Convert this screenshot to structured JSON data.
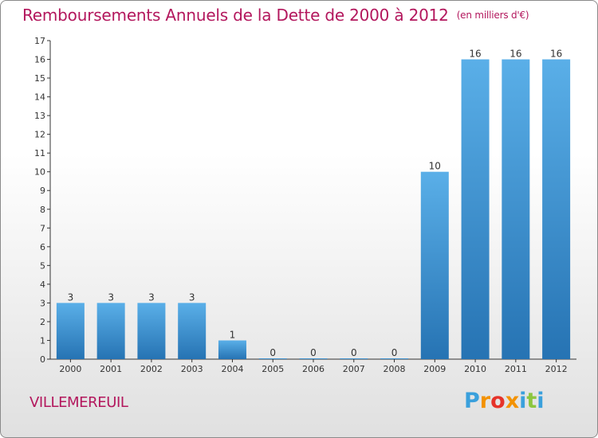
{
  "title": "Remboursements Annuels de la Dette de 2000 à 2012",
  "unit": "(en milliers d'€)",
  "commune": "VILLEMEREUIL",
  "logo": {
    "text": "Proxiti",
    "letter_colors": [
      "#3aa0dc",
      "#f39200",
      "#e6332a",
      "#f39200",
      "#3aa0dc",
      "#8cc63f",
      "#3aa0dc"
    ]
  },
  "chart_data": {
    "type": "bar",
    "categories": [
      "2000",
      "2001",
      "2002",
      "2003",
      "2004",
      "2005",
      "2006",
      "2007",
      "2008",
      "2009",
      "2010",
      "2011",
      "2012"
    ],
    "values": [
      3,
      3,
      3,
      3,
      1,
      0,
      0,
      0,
      0,
      10,
      16,
      16,
      16
    ],
    "data_labels": [
      "3",
      "3",
      "3",
      "3",
      "1",
      "0",
      "0",
      "0",
      "0",
      "10",
      "16",
      "16",
      "16"
    ],
    "ylim": [
      0,
      17
    ],
    "y_ticks": [
      "0",
      "1",
      "2",
      "3",
      "4",
      "5",
      "6",
      "7",
      "8",
      "9",
      "10",
      "11",
      "12",
      "13",
      "14",
      "15",
      "16",
      "17"
    ],
    "grid": false,
    "colors": {
      "bar_top": "#5aafe8",
      "bar_bottom": "#2673b3",
      "axis": "#333333",
      "text": "#333333"
    }
  }
}
